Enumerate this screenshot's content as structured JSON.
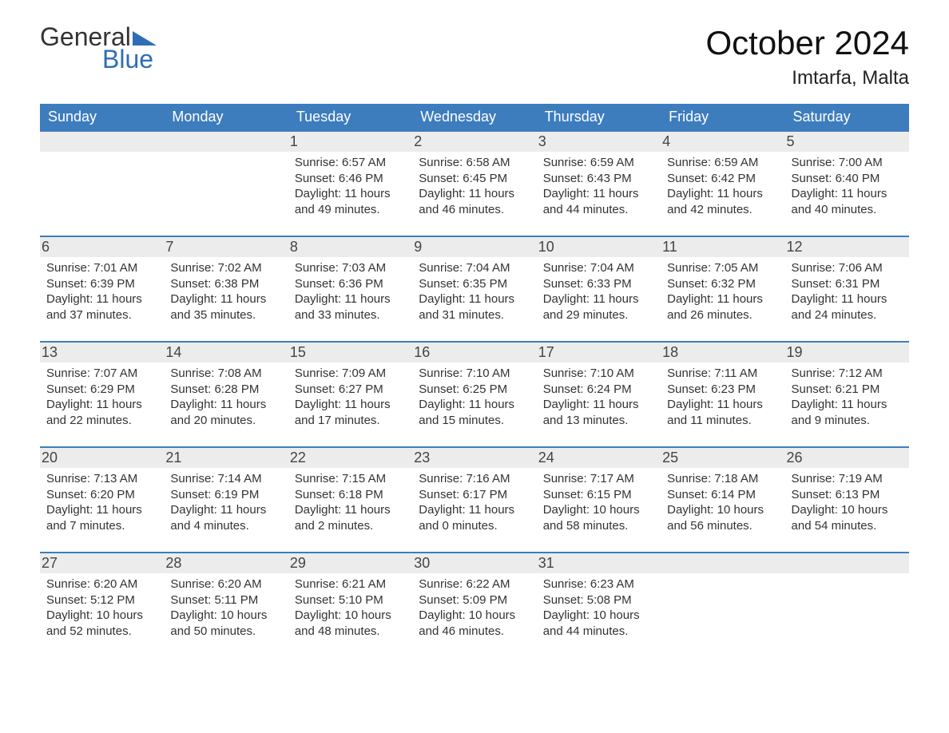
{
  "logo": {
    "word1": "General",
    "word2": "Blue"
  },
  "title": "October 2024",
  "location": "Imtarfa, Malta",
  "colors": {
    "header_bg": "#3e7dbd",
    "header_text": "#ffffff",
    "daynum_bg": "#ececec",
    "accent_line": "#3e7dbd",
    "logo_blue": "#2f6eb5",
    "page_bg": "#ffffff",
    "body_text": "#333333"
  },
  "fonts": {
    "family": "Arial",
    "title_size_pt": 32,
    "header_size_pt": 14,
    "body_size_pt": 11
  },
  "weekdays": [
    "Sunday",
    "Monday",
    "Tuesday",
    "Wednesday",
    "Thursday",
    "Friday",
    "Saturday"
  ],
  "labels": {
    "sunrise": "Sunrise:",
    "sunset": "Sunset:",
    "daylight": "Daylight:"
  },
  "weeks": [
    [
      null,
      null,
      {
        "n": "1",
        "sr": "6:57 AM",
        "ss": "6:46 PM",
        "dl1": "11 hours",
        "dl2": "and 49 minutes."
      },
      {
        "n": "2",
        "sr": "6:58 AM",
        "ss": "6:45 PM",
        "dl1": "11 hours",
        "dl2": "and 46 minutes."
      },
      {
        "n": "3",
        "sr": "6:59 AM",
        "ss": "6:43 PM",
        "dl1": "11 hours",
        "dl2": "and 44 minutes."
      },
      {
        "n": "4",
        "sr": "6:59 AM",
        "ss": "6:42 PM",
        "dl1": "11 hours",
        "dl2": "and 42 minutes."
      },
      {
        "n": "5",
        "sr": "7:00 AM",
        "ss": "6:40 PM",
        "dl1": "11 hours",
        "dl2": "and 40 minutes."
      }
    ],
    [
      {
        "n": "6",
        "sr": "7:01 AM",
        "ss": "6:39 PM",
        "dl1": "11 hours",
        "dl2": "and 37 minutes."
      },
      {
        "n": "7",
        "sr": "7:02 AM",
        "ss": "6:38 PM",
        "dl1": "11 hours",
        "dl2": "and 35 minutes."
      },
      {
        "n": "8",
        "sr": "7:03 AM",
        "ss": "6:36 PM",
        "dl1": "11 hours",
        "dl2": "and 33 minutes."
      },
      {
        "n": "9",
        "sr": "7:04 AM",
        "ss": "6:35 PM",
        "dl1": "11 hours",
        "dl2": "and 31 minutes."
      },
      {
        "n": "10",
        "sr": "7:04 AM",
        "ss": "6:33 PM",
        "dl1": "11 hours",
        "dl2": "and 29 minutes."
      },
      {
        "n": "11",
        "sr": "7:05 AM",
        "ss": "6:32 PM",
        "dl1": "11 hours",
        "dl2": "and 26 minutes."
      },
      {
        "n": "12",
        "sr": "7:06 AM",
        "ss": "6:31 PM",
        "dl1": "11 hours",
        "dl2": "and 24 minutes."
      }
    ],
    [
      {
        "n": "13",
        "sr": "7:07 AM",
        "ss": "6:29 PM",
        "dl1": "11 hours",
        "dl2": "and 22 minutes."
      },
      {
        "n": "14",
        "sr": "7:08 AM",
        "ss": "6:28 PM",
        "dl1": "11 hours",
        "dl2": "and 20 minutes."
      },
      {
        "n": "15",
        "sr": "7:09 AM",
        "ss": "6:27 PM",
        "dl1": "11 hours",
        "dl2": "and 17 minutes."
      },
      {
        "n": "16",
        "sr": "7:10 AM",
        "ss": "6:25 PM",
        "dl1": "11 hours",
        "dl2": "and 15 minutes."
      },
      {
        "n": "17",
        "sr": "7:10 AM",
        "ss": "6:24 PM",
        "dl1": "11 hours",
        "dl2": "and 13 minutes."
      },
      {
        "n": "18",
        "sr": "7:11 AM",
        "ss": "6:23 PM",
        "dl1": "11 hours",
        "dl2": "and 11 minutes."
      },
      {
        "n": "19",
        "sr": "7:12 AM",
        "ss": "6:21 PM",
        "dl1": "11 hours",
        "dl2": "and 9 minutes."
      }
    ],
    [
      {
        "n": "20",
        "sr": "7:13 AM",
        "ss": "6:20 PM",
        "dl1": "11 hours",
        "dl2": "and 7 minutes."
      },
      {
        "n": "21",
        "sr": "7:14 AM",
        "ss": "6:19 PM",
        "dl1": "11 hours",
        "dl2": "and 4 minutes."
      },
      {
        "n": "22",
        "sr": "7:15 AM",
        "ss": "6:18 PM",
        "dl1": "11 hours",
        "dl2": "and 2 minutes."
      },
      {
        "n": "23",
        "sr": "7:16 AM",
        "ss": "6:17 PM",
        "dl1": "11 hours",
        "dl2": "and 0 minutes."
      },
      {
        "n": "24",
        "sr": "7:17 AM",
        "ss": "6:15 PM",
        "dl1": "10 hours",
        "dl2": "and 58 minutes."
      },
      {
        "n": "25",
        "sr": "7:18 AM",
        "ss": "6:14 PM",
        "dl1": "10 hours",
        "dl2": "and 56 minutes."
      },
      {
        "n": "26",
        "sr": "7:19 AM",
        "ss": "6:13 PM",
        "dl1": "10 hours",
        "dl2": "and 54 minutes."
      }
    ],
    [
      {
        "n": "27",
        "sr": "6:20 AM",
        "ss": "5:12 PM",
        "dl1": "10 hours",
        "dl2": "and 52 minutes."
      },
      {
        "n": "28",
        "sr": "6:20 AM",
        "ss": "5:11 PM",
        "dl1": "10 hours",
        "dl2": "and 50 minutes."
      },
      {
        "n": "29",
        "sr": "6:21 AM",
        "ss": "5:10 PM",
        "dl1": "10 hours",
        "dl2": "and 48 minutes."
      },
      {
        "n": "30",
        "sr": "6:22 AM",
        "ss": "5:09 PM",
        "dl1": "10 hours",
        "dl2": "and 46 minutes."
      },
      {
        "n": "31",
        "sr": "6:23 AM",
        "ss": "5:08 PM",
        "dl1": "10 hours",
        "dl2": "and 44 minutes."
      },
      null,
      null
    ]
  ]
}
